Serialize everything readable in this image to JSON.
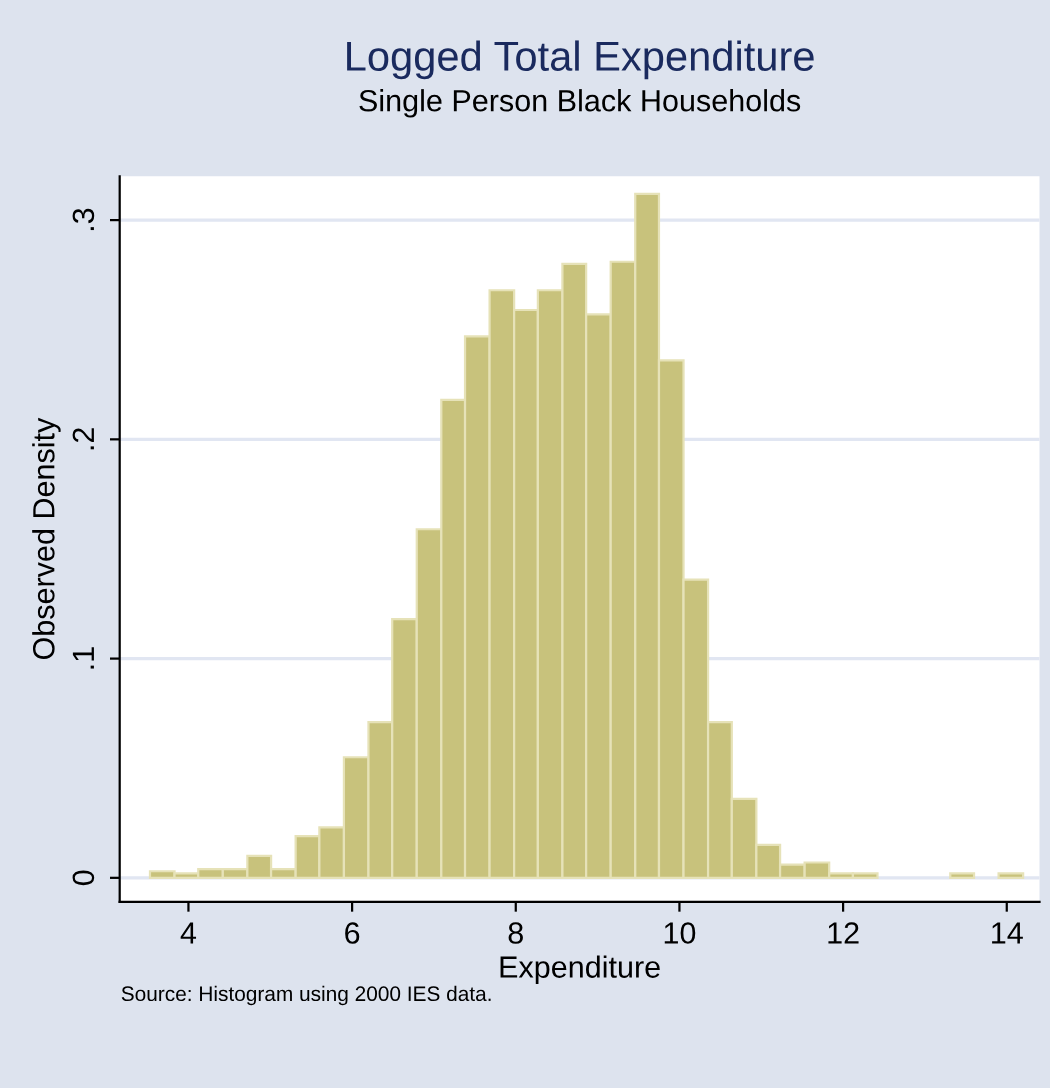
{
  "chart_data": {
    "type": "histogram",
    "title": "Logged Total Expenditure",
    "subtitle": "Single Person Black Households",
    "xlabel": "Expenditure",
    "ylabel": "Observed Density",
    "annotations": [
      "Source: Histogram using 2000 IES data."
    ],
    "bins": [
      3.53,
      3.83,
      4.12,
      4.42,
      4.72,
      5.01,
      5.31,
      5.6,
      5.9,
      6.2,
      6.49,
      6.79,
      7.09,
      7.38,
      7.68,
      7.98,
      8.27,
      8.57,
      8.86,
      9.16,
      9.46,
      9.75,
      10.05,
      10.35,
      10.64,
      10.94,
      11.23,
      11.53,
      11.83,
      12.12,
      12.42,
      13.31,
      13.6,
      13.9,
      14.2
    ],
    "values": [
      0.003,
      0.002,
      0.004,
      0.004,
      0.01,
      0.004,
      0.019,
      0.023,
      0.055,
      0.071,
      0.118,
      0.159,
      0.218,
      0.247,
      0.268,
      0.259,
      0.268,
      0.28,
      0.257,
      0.281,
      0.312,
      0.236,
      0.136,
      0.071,
      0.036,
      0.015,
      0.006,
      0.007,
      0.002,
      0.002,
      0,
      0.002,
      0,
      0.002
    ],
    "color": "#c8c27c",
    "xlim": [
      3.16,
      14.4
    ],
    "xticks": [
      4,
      6,
      8,
      10,
      12,
      14
    ],
    "ylim": [
      -0.011,
      0.32
    ],
    "yticks": [
      0,
      {
        "value": 0.1,
        "label": ".1"
      },
      {
        "value": 0.2,
        "label": ".2"
      },
      {
        "value": 0.3,
        "label": ".3"
      }
    ],
    "grid": "y",
    "legend": false
  }
}
